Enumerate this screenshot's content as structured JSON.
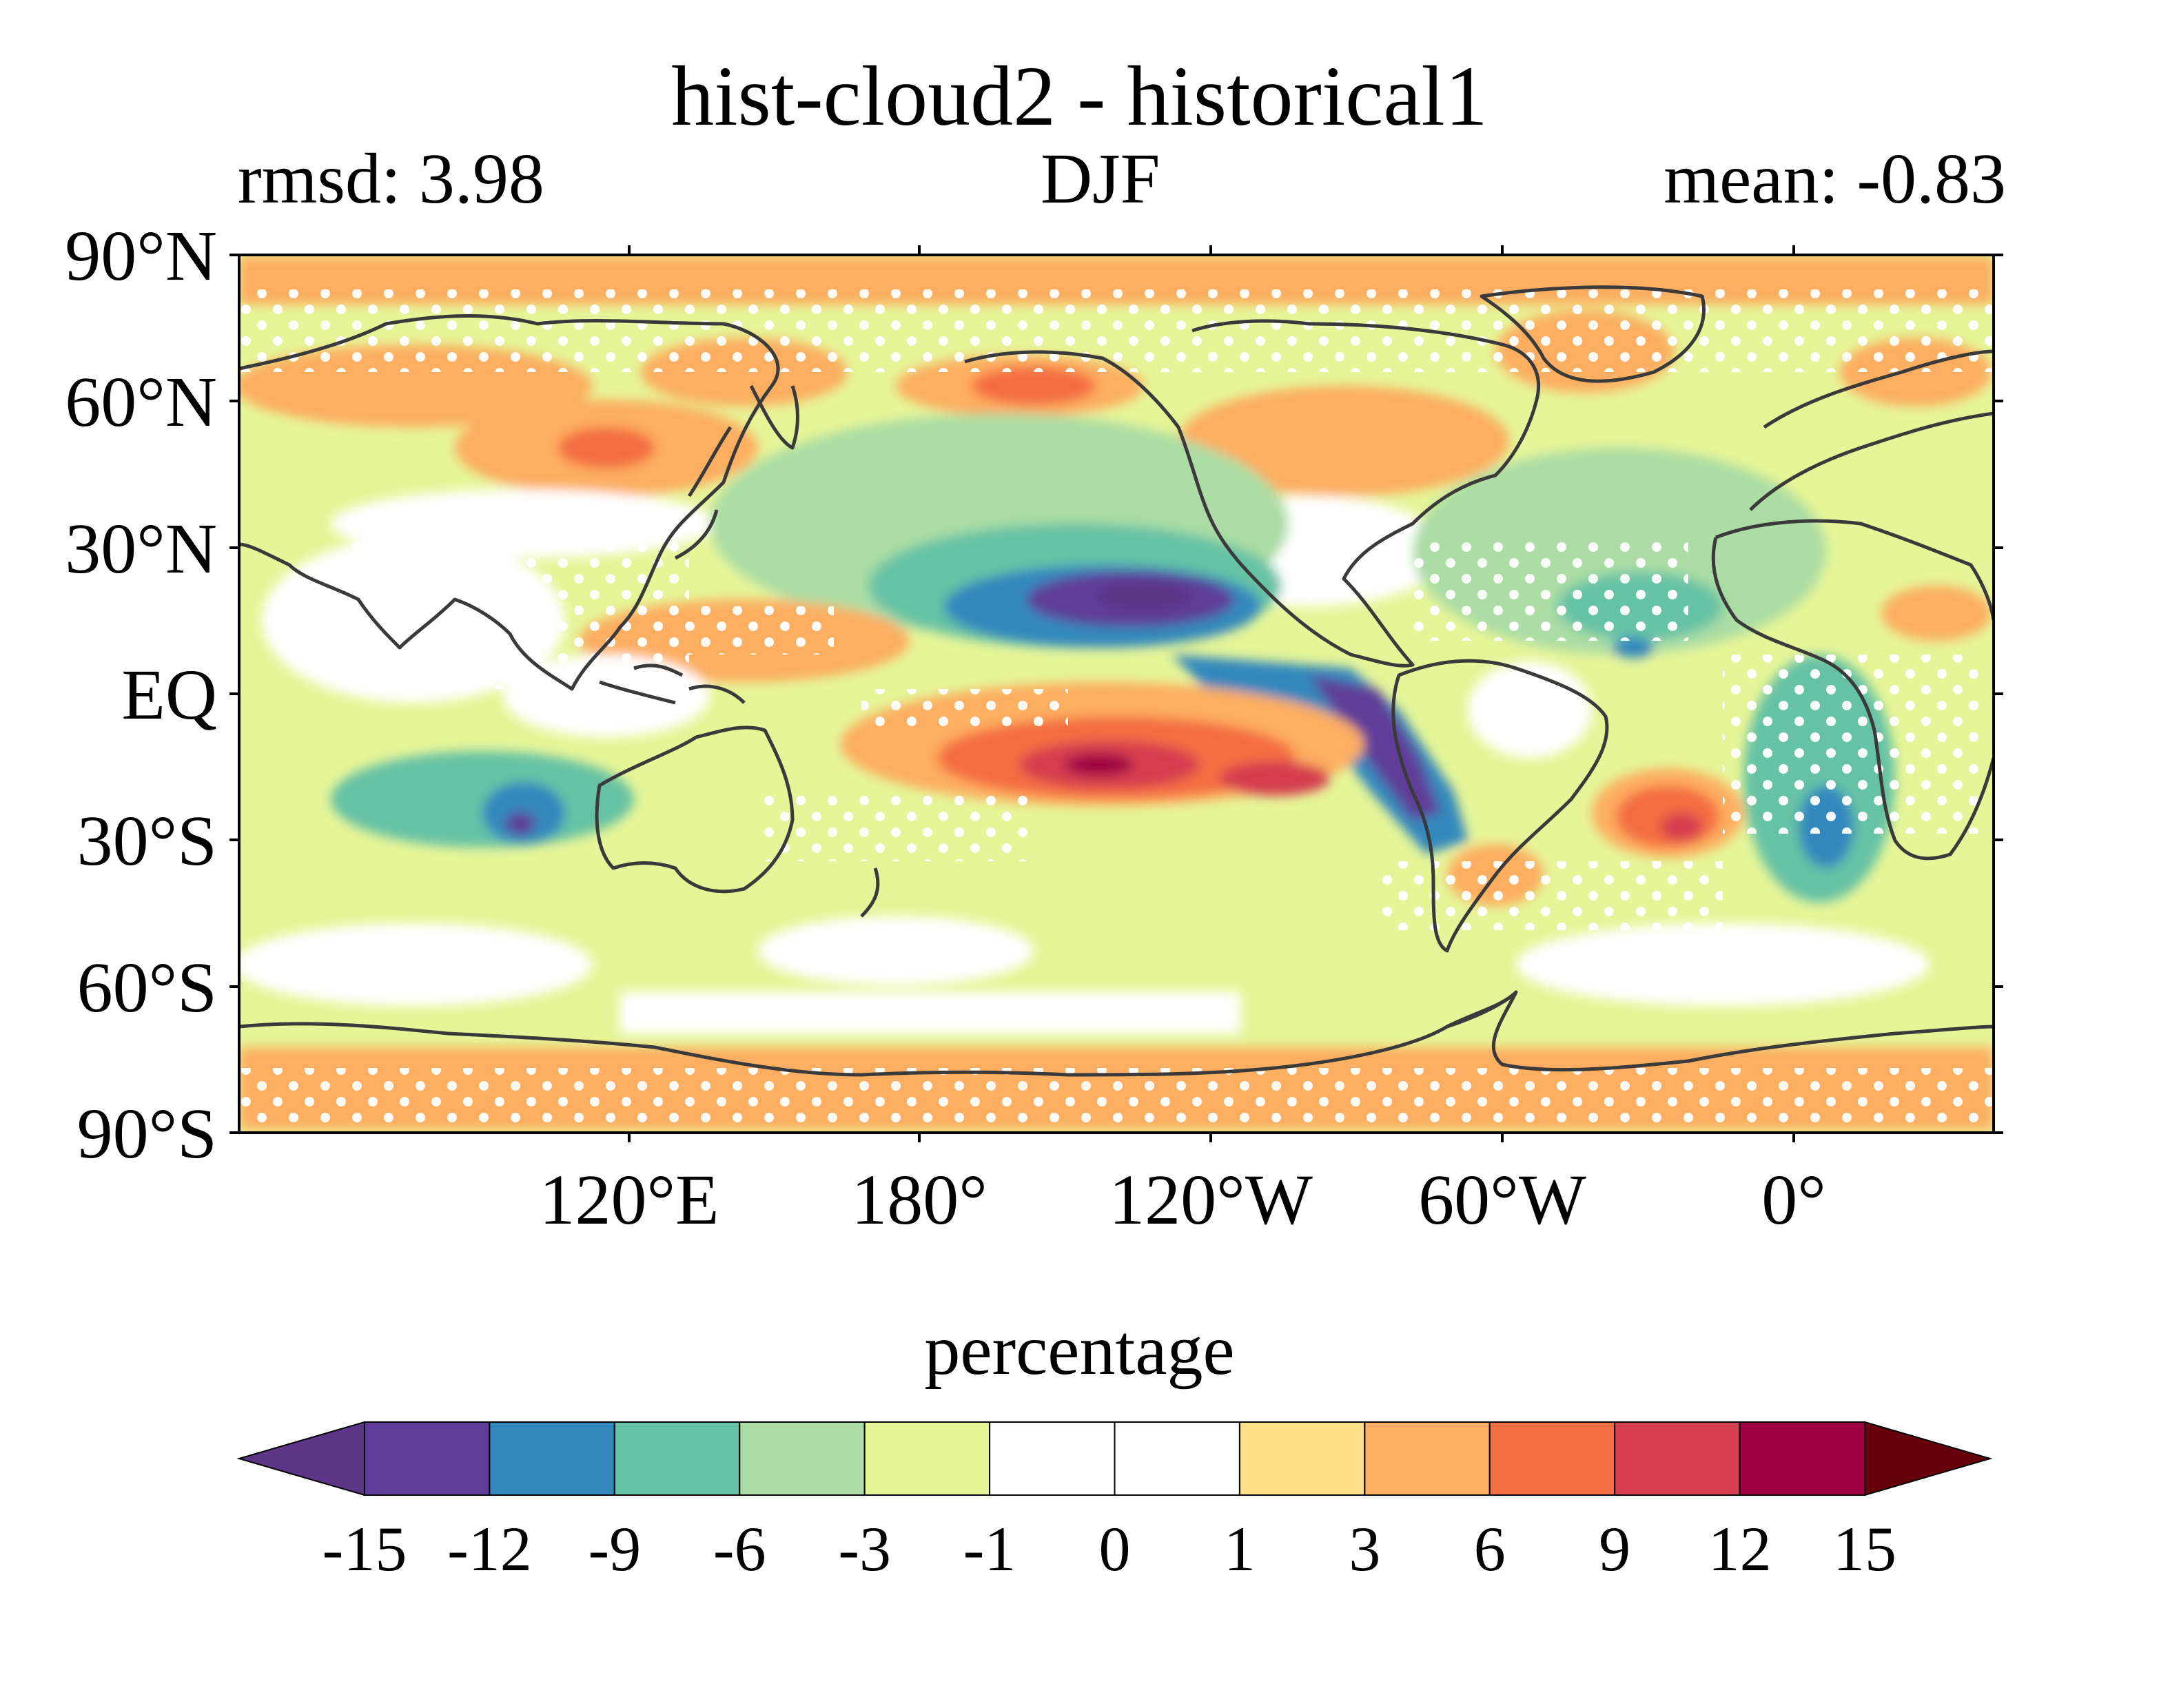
{
  "title": "hist-cloud2 - historical1",
  "rmsd": "rmsd: 3.98",
  "season": "DJF",
  "mean": "mean: -0.83",
  "y_ticks": [
    "90°N",
    "60°N",
    "30°N",
    "EQ",
    "30°S",
    "60°S",
    "90°S"
  ],
  "x_ticks": [
    "120°E",
    "180°",
    "120°W",
    "60°W",
    "0°"
  ],
  "colorbar": {
    "label": "percentage",
    "ticks": [
      "-15",
      "-12",
      "-9",
      "-6",
      "-3",
      "-1",
      "0",
      "1",
      "3",
      "6",
      "9",
      "12",
      "15"
    ],
    "colors": [
      "#5e3c99",
      "#3288bd",
      "#66c2a5",
      "#abdda4",
      "#e6f598",
      "#ffffff",
      "#ffffff",
      "#fee08b",
      "#fdae61",
      "#f46d43",
      "#d53e4f",
      "#9e0142"
    ],
    "under_color": "#5c3587",
    "over_color": "#67000d",
    "extend": "both"
  },
  "map": {
    "projection": "PlateCarree",
    "central_longitude": 160,
    "lon_range": [
      -20,
      340
    ],
    "lat_range": [
      -90,
      90
    ],
    "stippling": "white dots mark non-significant differences",
    "features": [
      {
        "name": "central-pacific-negative-anomaly",
        "lon": -140,
        "lat": 18,
        "value": -15
      },
      {
        "name": "east-pacific-negative-band",
        "lon": -90,
        "lat": -15,
        "value": -12
      },
      {
        "name": "south-pacific-positive-anomaly",
        "lon": -145,
        "lat": -12,
        "value": 15
      },
      {
        "name": "indian-ocean-negative-anomaly",
        "lon": 85,
        "lat": -27,
        "value": -12
      },
      {
        "name": "south-atlantic-positive-anomaly",
        "lon": -20,
        "lat": -25,
        "value": 9
      },
      {
        "name": "southeast-atlantic-negative-anomaly",
        "lon": 5,
        "lat": -25,
        "value": -9
      },
      {
        "name": "bering-positive-anomaly",
        "lon": -170,
        "lat": 62,
        "value": 9
      },
      {
        "name": "west-pacific-positive-band",
        "lon": 150,
        "lat": 13,
        "value": 6
      },
      {
        "name": "north-atlantic-negative-band",
        "lon": -40,
        "lat": 30,
        "value": -6
      }
    ]
  }
}
